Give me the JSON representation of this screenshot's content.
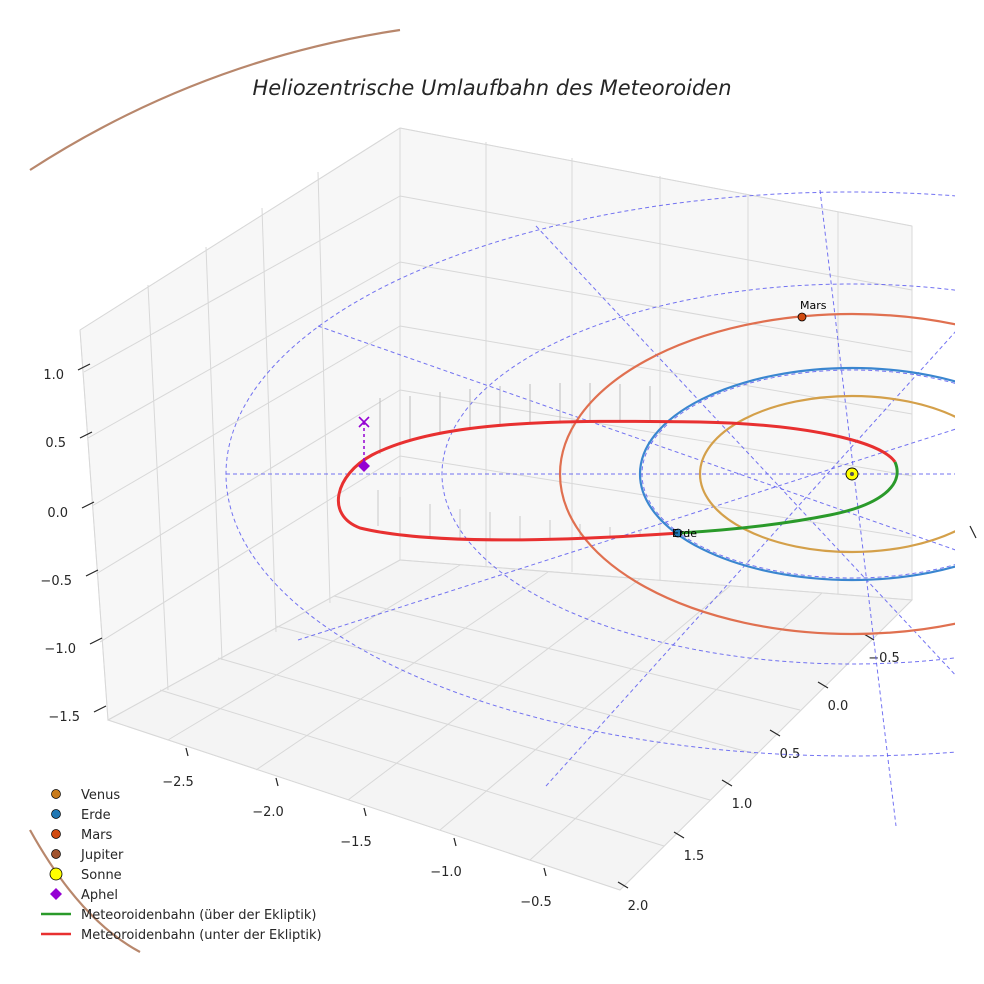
{
  "chart_data": {
    "type": "line3d",
    "title": "Heliozentrische Umlaufbahn des Meteoroiden",
    "x_ticks": [
      "−2.5",
      "−2.0",
      "−1.5",
      "−1.0",
      "−0.5"
    ],
    "y_ticks": [
      "−0.5",
      "0.0",
      "0.5",
      "1.0",
      "1.5",
      "2.0"
    ],
    "z_ticks": [
      "1.0",
      "0.5",
      "0.0",
      "−0.5",
      "−1.0",
      "−1.5"
    ],
    "xlim": [
      -2.8,
      -0.3
    ],
    "ylim": [
      -0.8,
      2.1
    ],
    "zlim": [
      -1.6,
      1.2
    ],
    "planets": [
      {
        "name": "Venus",
        "orbit_radius_au": 0.72,
        "color": "#d4a04a",
        "marker": "#c87a1a"
      },
      {
        "name": "Erde",
        "orbit_radius_au": 1.0,
        "color": "#3a86d0",
        "marker": "#1f77b4"
      },
      {
        "name": "Mars",
        "orbit_radius_au": 1.52,
        "color": "#e07050",
        "marker": "#d04a10"
      },
      {
        "name": "Jupiter",
        "orbit_radius_au": 5.2,
        "color": "#b8876c",
        "marker": "#a0522d"
      }
    ],
    "point_labels": {
      "earth": "Erde",
      "mars": "Mars"
    },
    "sun": {
      "name": "Sonne",
      "color": "#ffff00"
    },
    "aphel": {
      "name": "Aphel",
      "color": "#9400d3"
    },
    "meteoroid_orbit": {
      "above_label": "Meteoroidenbahn (über der Ekliptik)",
      "below_label": "Meteoroidenbahn (unter der Ekliptik)",
      "above_color": "#2a9a2a",
      "below_color": "#e83030"
    },
    "legend": [
      {
        "label": "Venus",
        "kind": "dot",
        "color": "#c87a1a"
      },
      {
        "label": "Erde",
        "kind": "dot",
        "color": "#1f77b4"
      },
      {
        "label": "Mars",
        "kind": "dot",
        "color": "#d04a10"
      },
      {
        "label": "Jupiter",
        "kind": "dot",
        "color": "#a0522d"
      },
      {
        "label": "Sonne",
        "kind": "sun",
        "color": "#ffff00"
      },
      {
        "label": "Aphel",
        "kind": "diamond",
        "color": "#9400d3"
      },
      {
        "label": "Meteoroidenbahn (über der Ekliptik)",
        "kind": "line",
        "color": "#2a9a2a"
      },
      {
        "label": "Meteoroidenbahn (unter der Ekliptik)",
        "kind": "line",
        "color": "#e83030"
      }
    ]
  }
}
